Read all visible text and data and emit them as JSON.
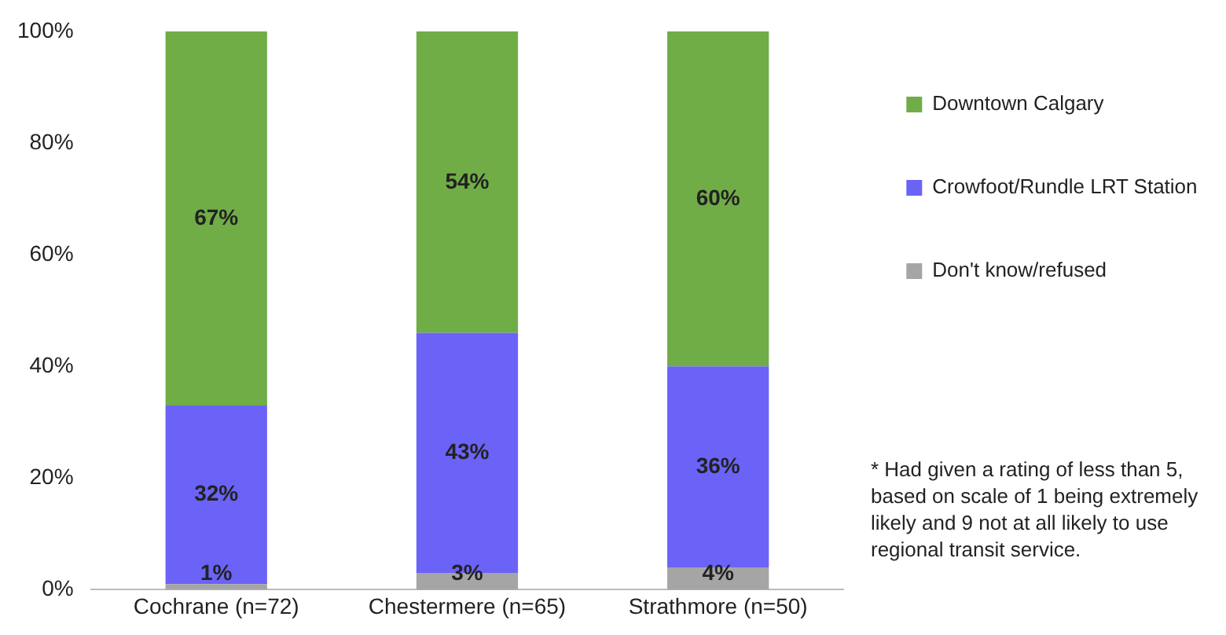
{
  "chart_data": {
    "type": "bar",
    "stacked": true,
    "categories": [
      "Cochrane (n=72)",
      "Chestermere (n=65)",
      "Strathmore (n=50)"
    ],
    "series": [
      {
        "name": "Don't know/refused",
        "color": "#a5a5a5",
        "values": [
          1,
          3,
          4
        ]
      },
      {
        "name": "Crowfoot/Rundle LRT Station",
        "color": "#6b63f7",
        "values": [
          32,
          43,
          36
        ]
      },
      {
        "name": "Downtown Calgary",
        "color": "#70ad47",
        "values": [
          67,
          54,
          60
        ]
      }
    ],
    "value_labels": [
      [
        "1%",
        "3%",
        "4%"
      ],
      [
        "32%",
        "43%",
        "36%"
      ],
      [
        "67%",
        "54%",
        "60%"
      ]
    ],
    "ylim": [
      0,
      100
    ],
    "yticks": [
      {
        "value": 0,
        "label": "0%"
      },
      {
        "value": 20,
        "label": "20%"
      },
      {
        "value": 40,
        "label": "40%"
      },
      {
        "value": 60,
        "label": "60%"
      },
      {
        "value": 80,
        "label": "80%"
      },
      {
        "value": 100,
        "label": "100%"
      }
    ],
    "grid": false,
    "legend": "right",
    "annotations": [
      "* Had given a rating of less than 5, based on scale of 1 being extremely likely and 9 not at all likely to use regional transit service."
    ]
  }
}
